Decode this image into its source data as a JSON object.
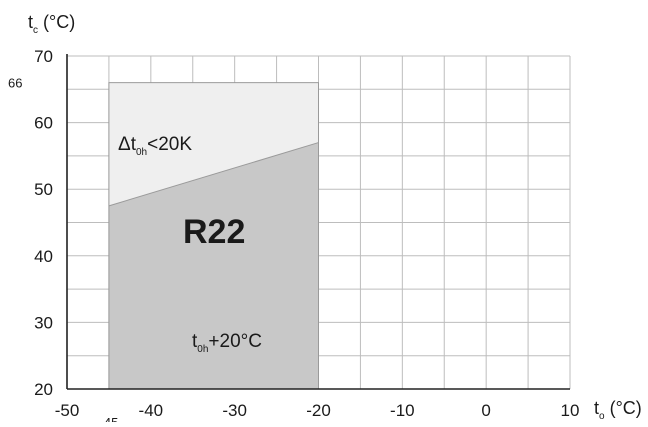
{
  "chart_data": {
    "type": "area",
    "xlabel": {
      "main": "t",
      "sub": "o",
      "unit": " (°C)"
    },
    "ylabel": {
      "main": "t",
      "sub": "c",
      "unit": " (°C)"
    },
    "xlim": [
      -50,
      10
    ],
    "ylim": [
      20,
      70
    ],
    "x_ticks": [
      -50,
      -40,
      -30,
      -20,
      -10,
      0,
      10
    ],
    "x_tick_labels": [
      "-50",
      "-40",
      "-30",
      "-20",
      "-10",
      "0",
      "10"
    ],
    "x_tick_extra": {
      "value": -45,
      "label": "-45"
    },
    "y_ticks": [
      20,
      30,
      40,
      50,
      60,
      70
    ],
    "y_tick_labels": [
      "20",
      "30",
      "40",
      "50",
      "60",
      "70"
    ],
    "y_tick_extra": {
      "value": 66,
      "label": "66"
    },
    "grid": true,
    "x_grid_step": 5,
    "y_grid_step": 5,
    "envelope": {
      "x_min": -45,
      "x_max": -20,
      "y_min": 20,
      "y_max": 66
    },
    "boundary_line": {
      "x": [
        -45,
        -20
      ],
      "y": [
        47.5,
        57
      ]
    },
    "regions": [
      {
        "name": "upper",
        "fill": "#efefef"
      },
      {
        "name": "lower",
        "fill": "#c8c8c8"
      }
    ],
    "annotations": {
      "upper": {
        "prefix": "Δt",
        "sub": "0h",
        "suffix": "<20K"
      },
      "lower": {
        "prefix": "t",
        "sub": "0h",
        "suffix": "+20°C"
      },
      "refrigerant": "R22"
    },
    "colors": {
      "grid": "#bdbdbd",
      "axis": "#222222",
      "envelope_edge": "#9a9a9a"
    }
  }
}
